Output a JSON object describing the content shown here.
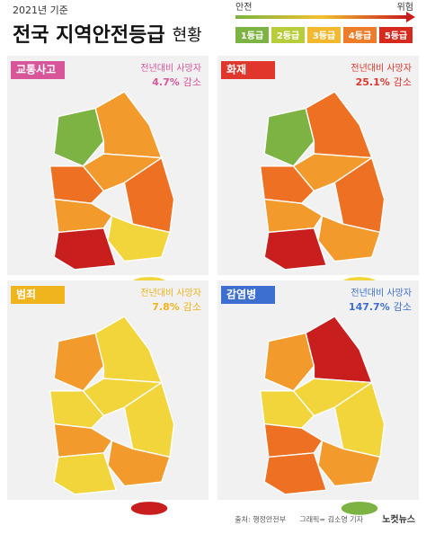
{
  "header": {
    "subtitle": "2021년 기준",
    "title": "전국 지역안전등급",
    "title_suffix": "현황"
  },
  "legend": {
    "safe": "안전",
    "danger": "위험",
    "grades": [
      "1등급",
      "2등급",
      "3등급",
      "4등급",
      "5등급"
    ]
  },
  "panels": [
    {
      "label": "교통사고",
      "caption": "전년대비 사망자",
      "change": "4.7%",
      "change_word": "감소"
    },
    {
      "label": "화재",
      "caption": "전년대비 사망자",
      "change": "25.1%",
      "change_word": "감소"
    },
    {
      "label": "범죄",
      "caption": "전년대비 사망자",
      "change": "7.8%",
      "change_word": "감소"
    },
    {
      "label": "감염병",
      "caption": "전년대비 사망자",
      "change": "147.7%",
      "change_word": "감소"
    }
  ],
  "footer": {
    "source": "출처: 행정안전부",
    "credit": "그래픽= 김소영 기자",
    "brand": "노컷뉴스"
  }
}
